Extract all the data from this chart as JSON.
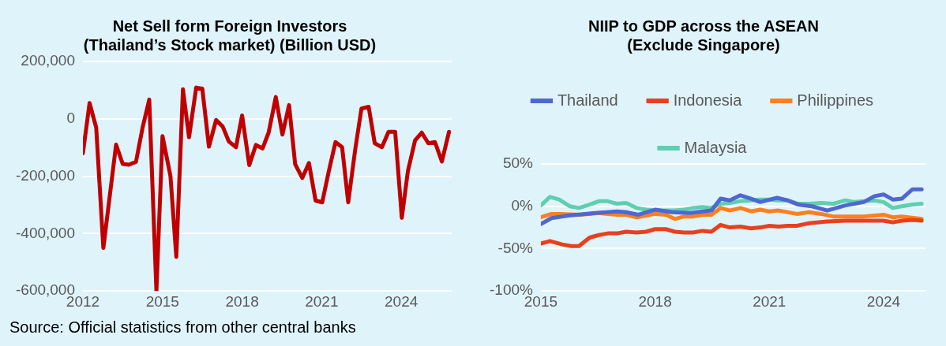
{
  "chart_data": [
    {
      "type": "line",
      "title": "Net Sell form Foreign Investors\n(Thailand’s Stock market) (Billion USD)",
      "grid": "y",
      "marker": "none",
      "line_style": "solid",
      "xlim": [
        2012,
        2025.9
      ],
      "xticks": [
        2012,
        2015,
        2018,
        2021,
        2024
      ],
      "ylim": [
        -600000,
        200000
      ],
      "yticks": [
        {
          "value": 200000,
          "label": "200,000"
        },
        {
          "value": 0,
          "label": "0"
        },
        {
          "value": -200000,
          "label": "-200,000"
        },
        {
          "value": -400000,
          "label": "-400,000"
        },
        {
          "value": -600000,
          "label": "-600,000"
        }
      ],
      "x": [
        2012.0,
        2012.25,
        2012.5,
        2012.77,
        2013.25,
        2013.5,
        2013.73,
        2014.0,
        2014.25,
        2014.5,
        2014.77,
        2015.0,
        2015.3,
        2015.52,
        2015.77,
        2016.0,
        2016.27,
        2016.5,
        2016.75,
        2017.02,
        2017.27,
        2017.5,
        2017.77,
        2018.0,
        2018.27,
        2018.52,
        2018.77,
        2019.0,
        2019.27,
        2019.52,
        2019.77,
        2020.0,
        2020.27,
        2020.52,
        2020.77,
        2021.02,
        2021.27,
        2021.52,
        2021.77,
        2022.0,
        2022.27,
        2022.5,
        2022.77,
        2023.0,
        2023.27,
        2023.52,
        2023.77,
        2024.02,
        2024.25,
        2024.52,
        2024.77,
        2025.02,
        2025.27,
        2025.53,
        2025.8
      ],
      "values": [
        -120000,
        55000,
        -30000,
        -450000,
        -90000,
        -157000,
        -160000,
        -150000,
        -30000,
        67000,
        -600000,
        -60000,
        -200000,
        -481000,
        103000,
        -64000,
        109000,
        105000,
        -97000,
        -4000,
        -27000,
        -79000,
        -99000,
        12000,
        -161000,
        -91000,
        -103000,
        -48000,
        76000,
        -55000,
        48000,
        -158000,
        -206000,
        -154000,
        -285000,
        -291000,
        -182000,
        -81000,
        -99000,
        -291000,
        -103000,
        36000,
        42000,
        -85000,
        -99000,
        -45000,
        -45000,
        -345000,
        -182000,
        -75000,
        -48000,
        -85000,
        -81000,
        -149000,
        -45000
      ],
      "color": "#c00000",
      "annotations": [
        "Source: Official statistics from other central banks"
      ]
    },
    {
      "type": "line",
      "title": "NIIP to GDP across the ASEAN\n(Exclude Singapore)",
      "grid": "y",
      "legend": "top",
      "marker": "none",
      "line_style": "solid",
      "xlim": [
        2015,
        2025.1
      ],
      "xticks": [
        2015,
        2018,
        2021,
        2024
      ],
      "ylim": [
        -100,
        50
      ],
      "yticks": [
        {
          "value": 50,
          "label": "50%"
        },
        {
          "value": 0,
          "label": "0%"
        },
        {
          "value": -50,
          "label": "-50%"
        },
        {
          "value": -100,
          "label": "-100%"
        }
      ],
      "series": [
        {
          "name": "Thailand",
          "color": "#4f67d0",
          "x": [
            2015.0,
            2015.28,
            2015.72,
            2016.44,
            2017.0,
            2017.24,
            2017.56,
            2018.0,
            2018.44,
            2018.92,
            2019.48,
            2019.72,
            2019.96,
            2020.24,
            2020.52,
            2020.76,
            2021.2,
            2021.48,
            2021.76,
            2022.12,
            2022.52,
            2022.76,
            2023.0,
            2023.48,
            2023.76,
            2024.0,
            2024.24,
            2024.48,
            2024.76,
            2025.0
          ],
          "values": [
            -21,
            -14,
            -11,
            -8,
            -6,
            -7,
            -10,
            -4,
            -7,
            -8,
            -5,
            9,
            7,
            13,
            9,
            5,
            10,
            7,
            2,
            0,
            -5,
            -2,
            1,
            5,
            12,
            14,
            8,
            9,
            20,
            20
          ]
        },
        {
          "name": "Indonesia",
          "color": "#e8401c",
          "x": [
            2015.0,
            2015.24,
            2015.56,
            2015.8,
            2016.0,
            2016.28,
            2016.52,
            2016.76,
            2017.0,
            2017.24,
            2017.52,
            2017.76,
            2018.0,
            2018.28,
            2018.52,
            2018.76,
            2019.0,
            2019.24,
            2019.48,
            2019.72,
            2019.96,
            2020.24,
            2020.52,
            2020.76,
            2021.0,
            2021.24,
            2021.48,
            2021.72,
            2022.04,
            2022.52,
            2023.0,
            2023.48,
            2024.0,
            2024.24,
            2024.48,
            2024.76,
            2025.0
          ],
          "values": [
            -44,
            -41,
            -45,
            -47,
            -47,
            -37,
            -34,
            -32,
            -32,
            -30,
            -31,
            -30,
            -27,
            -27,
            -30,
            -31,
            -31,
            -29,
            -30,
            -22,
            -25,
            -24,
            -26,
            -25,
            -23,
            -24,
            -23,
            -23,
            -20,
            -18,
            -17,
            -17,
            -17,
            -19,
            -17,
            -16,
            -17
          ]
        },
        {
          "name": "Philippines",
          "color": "#ff7f1e",
          "x": [
            2015.0,
            2015.28,
            2015.52,
            2016.04,
            2016.52,
            2017.0,
            2017.24,
            2017.52,
            2018.0,
            2018.28,
            2018.52,
            2018.76,
            2019.0,
            2019.24,
            2019.48,
            2019.72,
            2019.96,
            2020.24,
            2020.52,
            2020.76,
            2021.0,
            2021.24,
            2021.72,
            2022.04,
            2022.36,
            2022.68,
            2023.48,
            2024.0,
            2024.24,
            2024.48,
            2025.0
          ],
          "values": [
            -13,
            -9,
            -9,
            -10,
            -8,
            -10,
            -10,
            -13,
            -9,
            -10,
            -15,
            -12,
            -12,
            -10,
            -10,
            -2,
            -5,
            -2,
            -6,
            -4,
            -6,
            -5,
            -9,
            -7,
            -9,
            -12,
            -12,
            -10,
            -13,
            -12,
            -15
          ]
        },
        {
          "name": "Malaysia",
          "color": "#5ecfb0",
          "x": [
            2015.0,
            2015.24,
            2015.48,
            2015.76,
            2016.0,
            2016.28,
            2016.52,
            2016.76,
            2017.0,
            2017.24,
            2017.52,
            2017.76,
            2018.0,
            2018.28,
            2018.52,
            2018.76,
            2019.0,
            2019.24,
            2019.48,
            2019.72,
            2019.96,
            2020.24,
            2020.52,
            2020.76,
            2021.0,
            2021.24,
            2021.48,
            2021.76,
            2022.04,
            2022.36,
            2022.68,
            2023.0,
            2023.24,
            2023.48,
            2023.76,
            2024.0,
            2024.24,
            2024.48,
            2024.76,
            2025.0
          ],
          "values": [
            1,
            11,
            8,
            0,
            -2,
            2,
            6,
            6,
            3,
            4,
            -2,
            -4,
            -5,
            -5,
            -5,
            -4,
            -2,
            -1,
            -2,
            3,
            4,
            6,
            7,
            8,
            8,
            7,
            7,
            3,
            3,
            4,
            3,
            7,
            5,
            6,
            7,
            5,
            -2,
            0,
            2,
            3
          ]
        }
      ]
    }
  ]
}
